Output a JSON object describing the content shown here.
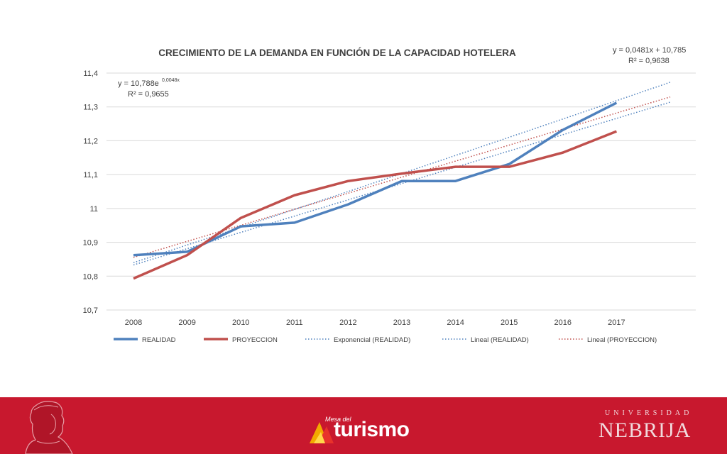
{
  "chart_data": {
    "type": "line",
    "title": "CRECIMIENTO DE LA DEMANDA EN FUNCIÓN DE LA CAPACIDAD HOTELERA",
    "categories": [
      "2008",
      "2009",
      "2010",
      "2011",
      "2012",
      "2013",
      "2014",
      "2015",
      "2016",
      "2017"
    ],
    "ylim": [
      10.7,
      11.4
    ],
    "yticks": [
      "10,7",
      "10,8",
      "10,9",
      "11",
      "11,1",
      "11,2",
      "11,3",
      "11,4"
    ],
    "ytick_values": [
      10.7,
      10.8,
      10.9,
      11.0,
      11.1,
      11.2,
      11.3,
      11.4
    ],
    "grid": true,
    "legend_position": "bottom",
    "series": [
      {
        "name": "REALIDAD",
        "color": "#4f81bd",
        "style": "solid",
        "values": [
          10.862,
          10.872,
          10.947,
          10.958,
          11.012,
          11.081,
          11.081,
          11.131,
          11.232,
          11.312
        ]
      },
      {
        "name": "PROYECCION",
        "color": "#c0504d",
        "style": "solid",
        "values": [
          10.793,
          10.862,
          10.972,
          11.039,
          11.081,
          11.103,
          11.123,
          11.123,
          11.165,
          11.228
        ]
      }
    ],
    "trendlines": [
      {
        "name": "Exponencial (REALIDAD)",
        "color": "#4f81bd",
        "style": "dotted",
        "kind": "exponential",
        "equation_base": "y = 10,788e",
        "equation_exp": "0,0048x",
        "r2": "R² = 0,9655",
        "a": 10.788,
        "b": 0.0048
      },
      {
        "name": "Lineal (REALIDAD)",
        "color": "#4f81bd",
        "style": "dotted",
        "kind": "linear",
        "equation": "y = 0,0481x + 10,785",
        "r2": "R² = 0,9638",
        "m": 0.0481,
        "c": 10.785
      },
      {
        "name": "Lineal (PROYECCION)",
        "color": "#c0504d",
        "style": "dotted",
        "kind": "linear",
        "m": 0.0474,
        "c": 10.808
      }
    ]
  },
  "footer": {
    "left_logo_small": "Mesa del",
    "left_logo_big": "turismo",
    "right_logo_small": "UNIVERSIDAD",
    "right_logo_big": "NEBRIJA",
    "background": "#c8182e"
  }
}
